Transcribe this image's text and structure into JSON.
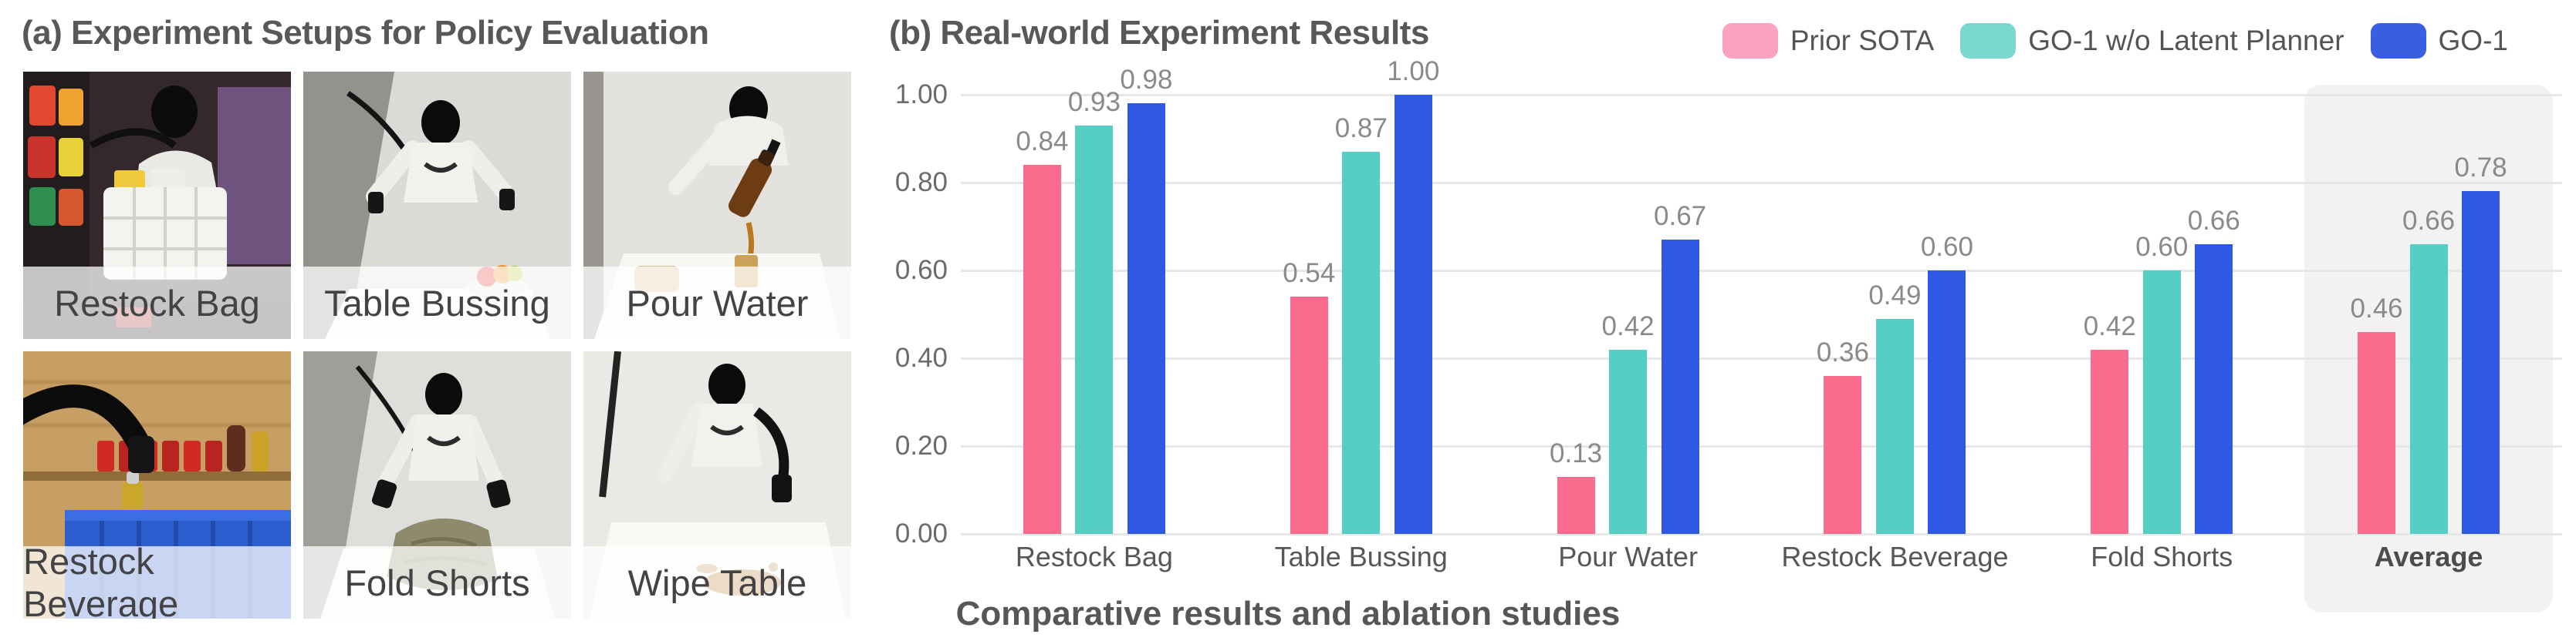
{
  "panel_a": {
    "title": "(a) Experiment Setups for Policy Evaluation",
    "photos": [
      {
        "label": "Restock Bag"
      },
      {
        "label": "Table Bussing"
      },
      {
        "label": "Pour Water"
      },
      {
        "label": "Restock Beverage"
      },
      {
        "label": "Fold Shorts"
      },
      {
        "label": "Wipe Table"
      }
    ]
  },
  "panel_b": {
    "title": "(b) Real-world Experiment Results",
    "caption": "Comparative results and ablation studies"
  },
  "chart_data": {
    "type": "bar",
    "categories": [
      "Restock Bag",
      "Table Bussing",
      "Pour Water",
      "Restock Beverage",
      "Fold Shorts",
      "Average"
    ],
    "series": [
      {
        "name": "Prior SOTA",
        "color": "#FB6B8E",
        "legend_color": "#FAA3BE",
        "values": [
          0.84,
          0.54,
          0.13,
          0.36,
          0.42,
          0.46
        ]
      },
      {
        "name": "GO-1 w/o Latent Planner",
        "color": "#55CEC3",
        "legend_color": "#79D9CF",
        "values": [
          0.93,
          0.87,
          0.42,
          0.49,
          0.6,
          0.66
        ]
      },
      {
        "name": "GO-1",
        "color": "#2F58E4",
        "legend_color": "#3A5EE1",
        "values": [
          0.98,
          1.0,
          0.67,
          0.6,
          0.66,
          0.78
        ]
      }
    ],
    "ylim": [
      0.0,
      1.0
    ],
    "yticks": [
      "0.00",
      "0.20",
      "0.40",
      "0.60",
      "0.80",
      "1.00"
    ],
    "grid": true,
    "grid_color": "#E7E7E7",
    "legend_position": "top-right",
    "highlight_category": "Average",
    "highlight_color": "#F2F2F3",
    "value_label_decimals": 2,
    "xlabel": "",
    "ylabel": ""
  }
}
